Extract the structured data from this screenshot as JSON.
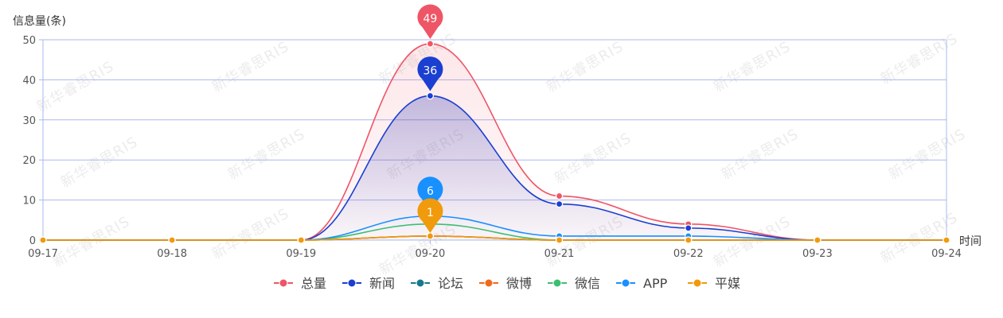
{
  "chart_data": {
    "type": "line",
    "title": "",
    "ylabel": "信息量(条)",
    "xlabel": "时间",
    "x": [
      "09-17",
      "09-18",
      "09-19",
      "09-20",
      "09-21",
      "09-22",
      "09-23",
      "09-24"
    ],
    "ylim": [
      0,
      50
    ],
    "yticks": [
      0,
      10,
      20,
      30,
      40,
      50
    ],
    "grid": true,
    "legend_position": "bottom",
    "series": [
      {
        "name": "总量",
        "color": "#ee5566",
        "values": [
          0,
          0,
          0,
          49,
          11,
          4,
          0,
          0
        ],
        "area": true,
        "peak_label": "49"
      },
      {
        "name": "新闻",
        "color": "#1a3fd1",
        "values": [
          0,
          0,
          0,
          36,
          9,
          3,
          0,
          0
        ],
        "area": true,
        "peak_label": "36"
      },
      {
        "name": "论坛",
        "color": "#167a8c",
        "values": [
          0,
          0,
          0,
          1,
          0,
          0,
          0,
          0
        ]
      },
      {
        "name": "微博",
        "color": "#f06a1a",
        "values": [
          0,
          0,
          0,
          1,
          0,
          0,
          0,
          0
        ]
      },
      {
        "name": "微信",
        "color": "#3cbf72",
        "values": [
          0,
          0,
          0,
          4,
          0,
          0,
          0,
          0
        ]
      },
      {
        "name": "APP",
        "color": "#1890ff",
        "values": [
          0,
          0,
          0,
          6,
          1,
          1,
          0,
          0
        ],
        "peak_label": "6"
      },
      {
        "name": "平媒",
        "color": "#f09a0c",
        "values": [
          0,
          0,
          0,
          1,
          0,
          0,
          0,
          0
        ],
        "peak_label": "1"
      }
    ]
  },
  "watermark_text": "新华睿思RIS"
}
